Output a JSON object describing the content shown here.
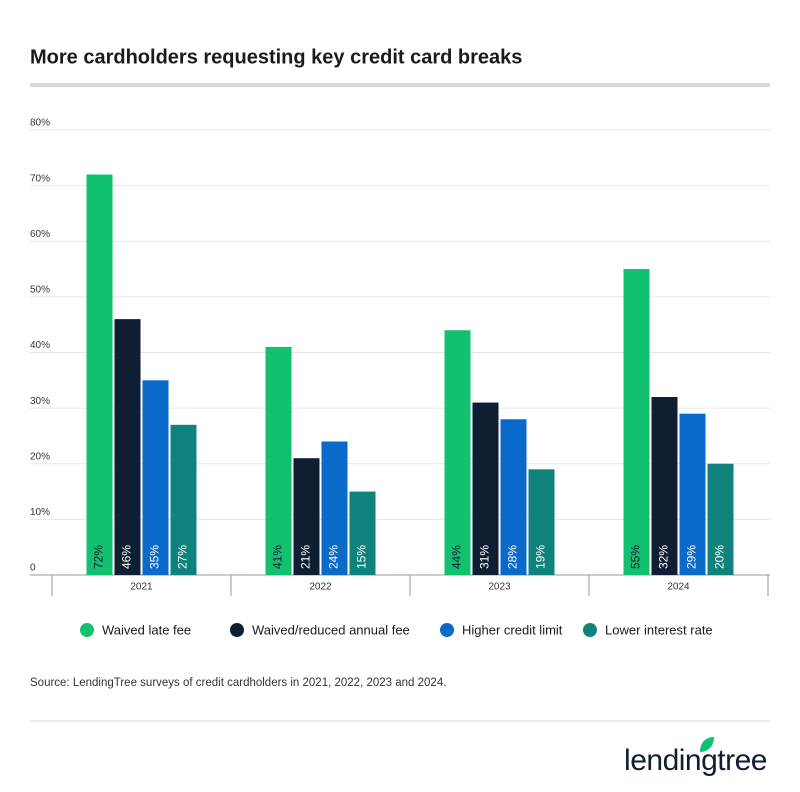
{
  "chart_data": {
    "type": "bar",
    "title": "More cardholders requesting key credit card breaks",
    "categories": [
      "2021",
      "2022",
      "2023",
      "2024"
    ],
    "series": [
      {
        "name": "Waived late fee",
        "color": "#12c16f",
        "values": [
          72,
          41,
          44,
          55
        ],
        "value_labels": [
          "72%",
          "41%",
          "44%",
          "55%"
        ]
      },
      {
        "name": "Waived/reduced annual fee",
        "color": "#0f1e33",
        "values": [
          46,
          21,
          31,
          32
        ],
        "value_labels": [
          "46%",
          "21%",
          "31%",
          "32%"
        ]
      },
      {
        "name": "Higher credit limit",
        "color": "#0a6ac9",
        "values": [
          35,
          24,
          28,
          29
        ],
        "value_labels": [
          "35%",
          "24%",
          "28%",
          "29%"
        ]
      },
      {
        "name": "Lower interest rate",
        "color": "#0f827c",
        "values": [
          27,
          15,
          19,
          20
        ],
        "value_labels": [
          "27%",
          "15%",
          "19%",
          "20%"
        ]
      }
    ],
    "ylim": [
      0,
      80
    ],
    "yticks": [
      0,
      {
        "value": 10,
        "label": "10%"
      },
      {
        "value": 20,
        "label": "20%"
      },
      {
        "value": 30,
        "label": "30%"
      },
      {
        "value": 40,
        "label": "40%"
      },
      {
        "value": 50,
        "label": "50%"
      },
      {
        "value": 60,
        "label": "60%"
      },
      {
        "value": 70,
        "label": "70%"
      },
      {
        "value": 80,
        "label": "80%"
      }
    ],
    "grid": true,
    "legend": "bottom",
    "source": "Source: LendingTree surveys of credit cardholders in 2021, 2022, 2023 and 2024.",
    "logo": "lendingtree"
  }
}
